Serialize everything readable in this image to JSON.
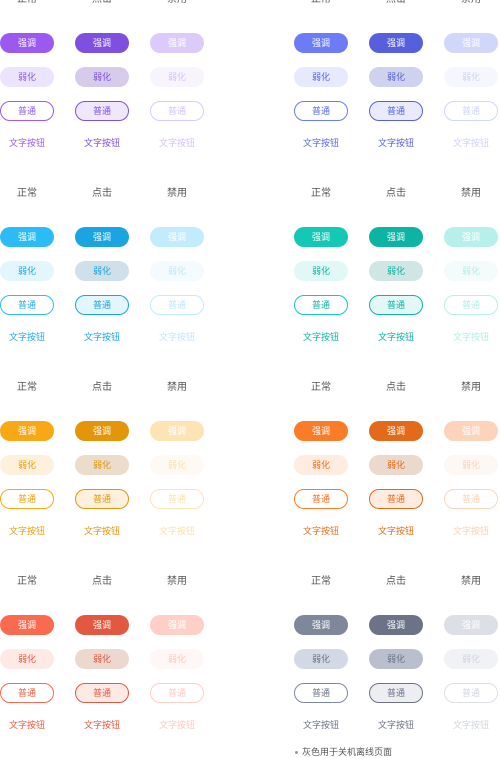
{
  "state_labels": [
    "正常",
    "点击",
    "禁用"
  ],
  "button_labels": {
    "strong": "强调",
    "weak": "弱化",
    "normal": "普通",
    "text": "文字按钮"
  },
  "note": "灰色用于关机离线页面",
  "palettes": [
    {
      "name": "purple",
      "states": [
        {
          "strong_bg": "#9b59f0",
          "weak_bg": "#ece4fc",
          "weak_fg": "#8c5ae8",
          "normal_border": "#9b59f0",
          "normal_bg": "#ffffff",
          "normal_fg": "#8c5ae8",
          "text_fg": "#9b59f0"
        },
        {
          "strong_bg": "#7f4fe0",
          "weak_bg": "#d7cbec",
          "weak_fg": "#7f4fe0",
          "normal_border": "#7f4fe0",
          "normal_bg": "#efe8fb",
          "normal_fg": "#7f4fe0",
          "text_fg": "#7f4fe0"
        },
        {
          "strong_bg": "#dccbfa",
          "weak_bg": "#f8f4fe",
          "weak_fg": "#d4c2f7",
          "normal_border": "#dccbfa",
          "normal_bg": "#ffffff",
          "normal_fg": "#d4c2f7",
          "text_fg": "#d4c2f7"
        }
      ]
    },
    {
      "name": "blue",
      "states": [
        {
          "strong_bg": "#6b7cf6",
          "weak_bg": "#e7e9fd",
          "weak_fg": "#5a68e6",
          "normal_border": "#6b7cf6",
          "normal_bg": "#ffffff",
          "normal_fg": "#5a68e6",
          "text_fg": "#5a68e6"
        },
        {
          "strong_bg": "#5660dd",
          "weak_bg": "#cfd2ee",
          "weak_fg": "#5660dd",
          "normal_border": "#5660dd",
          "normal_bg": "#e9ebfc",
          "normal_fg": "#5660dd",
          "text_fg": "#5660dd"
        },
        {
          "strong_bg": "#d1d6fb",
          "weak_bg": "#f6f7fe",
          "weak_fg": "#cdd2f8",
          "normal_border": "#d1d6fb",
          "normal_bg": "#ffffff",
          "normal_fg": "#cdd2f8",
          "text_fg": "#cdd2f8"
        }
      ]
    },
    {
      "name": "cyan",
      "states": [
        {
          "strong_bg": "#2bbcf5",
          "weak_bg": "#e3f5fd",
          "weak_fg": "#1fa8e6",
          "normal_border": "#2bbcf5",
          "normal_bg": "#ffffff",
          "normal_fg": "#1fa8e6",
          "text_fg": "#1fa8e6"
        },
        {
          "strong_bg": "#1aa5e0",
          "weak_bg": "#cfe0ea",
          "weak_fg": "#1aa5e0",
          "normal_border": "#1aa5e0",
          "normal_bg": "#e3f5fd",
          "normal_fg": "#1aa5e0",
          "text_fg": "#1aa5e0"
        },
        {
          "strong_bg": "#c2ebfc",
          "weak_bg": "#f4fbfe",
          "weak_fg": "#bfe7f8",
          "normal_border": "#c2ebfc",
          "normal_bg": "#ffffff",
          "normal_fg": "#bfe7f8",
          "text_fg": "#bfe7f8"
        }
      ]
    },
    {
      "name": "teal",
      "states": [
        {
          "strong_bg": "#14c8b6",
          "weak_bg": "#e2f8f6",
          "weak_fg": "#10b3a3",
          "normal_border": "#14c8b6",
          "normal_bg": "#ffffff",
          "normal_fg": "#10b3a3",
          "text_fg": "#10b3a3"
        },
        {
          "strong_bg": "#0db3a3",
          "weak_bg": "#cfe6e4",
          "weak_fg": "#0db3a3",
          "normal_border": "#0db3a3",
          "normal_bg": "#e2f8f6",
          "normal_fg": "#0db3a3",
          "text_fg": "#0db3a3"
        },
        {
          "strong_bg": "#b7f0ea",
          "weak_bg": "#f3fcfb",
          "weak_fg": "#b3ece6",
          "normal_border": "#b7f0ea",
          "normal_bg": "#ffffff",
          "normal_fg": "#b3ece6",
          "text_fg": "#b3ece6"
        }
      ]
    },
    {
      "name": "amber",
      "states": [
        {
          "strong_bg": "#f7a814",
          "weak_bg": "#fdf1dd",
          "weak_fg": "#ec9e0a",
          "normal_border": "#f7a814",
          "normal_bg": "#ffffff",
          "normal_fg": "#ec9e0a",
          "text_fg": "#ec9e0a"
        },
        {
          "strong_bg": "#e3960a",
          "weak_bg": "#ecdccb",
          "weak_fg": "#e3960a",
          "normal_border": "#e3960a",
          "normal_bg": "#fdf1dd",
          "normal_fg": "#e3960a",
          "text_fg": "#e3960a"
        },
        {
          "strong_bg": "#fde4b5",
          "weak_bg": "#fefaf3",
          "weak_fg": "#fbdfae",
          "normal_border": "#fde4b5",
          "normal_bg": "#ffffff",
          "normal_fg": "#fbdfae",
          "text_fg": "#fbdfae"
        }
      ]
    },
    {
      "name": "orange",
      "states": [
        {
          "strong_bg": "#fa7b28",
          "weak_bg": "#feece1",
          "weak_fg": "#ee6f1d",
          "normal_border": "#fa7b28",
          "normal_bg": "#ffffff",
          "normal_fg": "#ee6f1d",
          "text_fg": "#ee6f1d"
        },
        {
          "strong_bg": "#e36a1a",
          "weak_bg": "#ecd9cd",
          "weak_fg": "#e36a1a",
          "normal_border": "#e36a1a",
          "normal_bg": "#feece1",
          "normal_fg": "#e36a1a",
          "text_fg": "#e36a1a"
        },
        {
          "strong_bg": "#fdd4bb",
          "weak_bg": "#fef8f4",
          "weak_fg": "#fbd1b6",
          "normal_border": "#fdd4bb",
          "normal_bg": "#ffffff",
          "normal_fg": "#fbd1b6",
          "text_fg": "#fbd1b6"
        }
      ]
    },
    {
      "name": "red",
      "states": [
        {
          "strong_bg": "#fa6a4f",
          "weak_bg": "#feeae5",
          "weak_fg": "#ec5a3f",
          "normal_border": "#fa6a4f",
          "normal_bg": "#ffffff",
          "normal_fg": "#ec5a3f",
          "text_fg": "#ec5a3f"
        },
        {
          "strong_bg": "#e35840",
          "weak_bg": "#ecd8cf",
          "weak_fg": "#e35840",
          "normal_border": "#e35840",
          "normal_bg": "#feeae5",
          "normal_fg": "#e35840",
          "text_fg": "#e35840"
        },
        {
          "strong_bg": "#fdcfc6",
          "weak_bg": "#fef7f5",
          "weak_fg": "#fbcac0",
          "normal_border": "#fdcfc6",
          "normal_bg": "#ffffff",
          "normal_fg": "#fbcac0",
          "text_fg": "#fbcac0"
        }
      ]
    },
    {
      "name": "gray",
      "states": [
        {
          "strong_bg": "#7f879a",
          "weak_bg": "#d3d9e4",
          "weak_fg": "#6b7386",
          "normal_border": "#7f879a",
          "normal_bg": "#ffffff",
          "normal_fg": "#6b7386",
          "text_fg": "#6b7386"
        },
        {
          "strong_bg": "#6c7386",
          "weak_bg": "#b9bfcc",
          "weak_fg": "#6c7386",
          "normal_border": "#6c7386",
          "normal_bg": "#eceef2",
          "normal_fg": "#6c7386",
          "text_fg": "#6c7386"
        },
        {
          "strong_bg": "#dcdfe5",
          "weak_bg": "#f1f2f5",
          "weak_fg": "#d0d4dc",
          "normal_border": "#dcdfe5",
          "normal_bg": "#ffffff",
          "normal_fg": "#d0d4dc",
          "text_fg": "#d0d4dc"
        }
      ]
    }
  ]
}
